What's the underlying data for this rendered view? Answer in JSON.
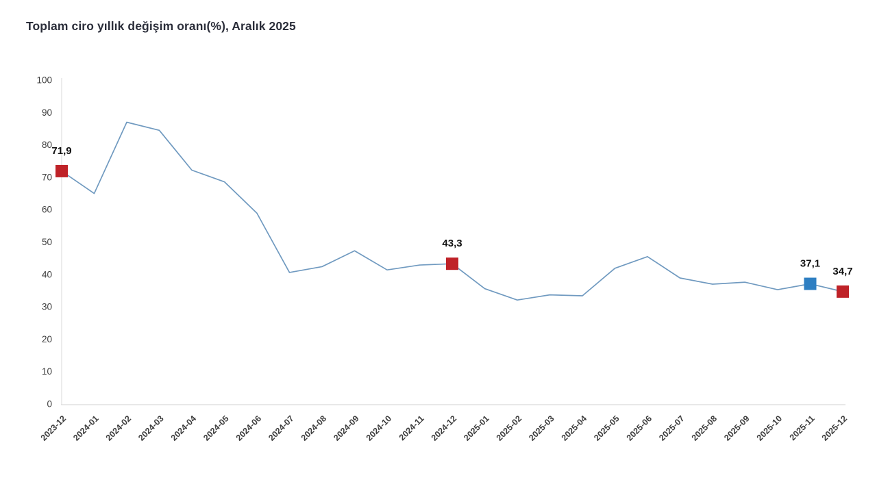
{
  "chart_data": {
    "type": "line",
    "title": "Toplam ciro yıllık değişim oranı(%), Aralık 2025",
    "categories": [
      "2023-12",
      "2024-01",
      "2024-02",
      "2024-03",
      "2024-04",
      "2024-05",
      "2024-06",
      "2024-07",
      "2024-08",
      "2024-09",
      "2024-10",
      "2024-11",
      "2024-12",
      "2025-01",
      "2025-02",
      "2025-03",
      "2025-04",
      "2025-05",
      "2025-06",
      "2025-07",
      "2025-08",
      "2025-09",
      "2025-10",
      "2025-11",
      "2025-12"
    ],
    "values": [
      71.9,
      65.0,
      87.0,
      84.5,
      72.2,
      68.6,
      58.9,
      40.6,
      42.4,
      47.3,
      41.4,
      42.9,
      43.3,
      35.6,
      32.1,
      33.7,
      33.4,
      41.9,
      45.5,
      38.9,
      37.0,
      37.6,
      35.3,
      37.1,
      34.7
    ],
    "ylim": [
      0,
      100
    ],
    "ytick_step": 10,
    "xlabel": "",
    "ylabel": "",
    "grid": false,
    "legend": false,
    "line_color": "#709ac0",
    "axis_color": "#d9d9d9",
    "tick_label_color": "#3d3d3d",
    "annotation_label_color": "#111111",
    "annotations": [
      {
        "category": "2023-12",
        "value": 71.9,
        "label": "71,9",
        "marker": "square",
        "marker_color": "#bf2228"
      },
      {
        "category": "2024-12",
        "value": 43.3,
        "label": "43,3",
        "marker": "square",
        "marker_color": "#bf2228"
      },
      {
        "category": "2025-11",
        "value": 37.1,
        "label": "37,1",
        "marker": "square",
        "marker_color": "#2e7fc2"
      },
      {
        "category": "2025-12",
        "value": 34.7,
        "label": "34,7",
        "marker": "square",
        "marker_color": "#bf2228"
      }
    ]
  }
}
